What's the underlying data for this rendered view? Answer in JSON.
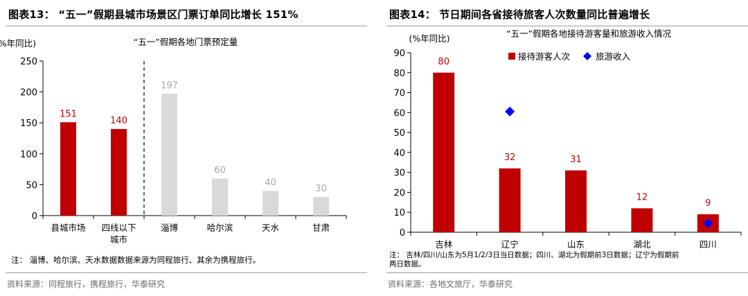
{
  "left": {
    "title": "图表13：  “五一”假期县城市场景区门票订单同比增长 151%",
    "note": "注：  淄博、哈尔滨、天水数据数据来源为同程旅行、其余为携程旅行。",
    "source": "资料来源：同程旅行，携程旅行，华泰研究"
  },
  "right": {
    "title": "图表14：   节日期间各省接待旅客人次数量同比普遍增长",
    "note_line1": "注：  吉林/四川/山东为5月1/2/3日当日数据；四川、湖北为假期前3日数据；辽宁为假期前",
    "note_line2": "两日数据。",
    "source": "资料来源：各地文旅厅，华泰研究"
  },
  "chart_data": [
    {
      "type": "bar",
      "title": "“五一”假期各地门票预定量",
      "ylabel": "(%年同比)",
      "ylim": [
        0,
        250
      ],
      "yticks": [
        0,
        50,
        100,
        150,
        200,
        250
      ],
      "categories": [
        "县城市场",
        "四线以下城市",
        "淄博",
        "哈尔滨",
        "天水",
        "甘肃"
      ],
      "category_lines": [
        [
          "县城市场"
        ],
        [
          "四线以下",
          "城市"
        ],
        [
          "淄博"
        ],
        [
          "哈尔滨"
        ],
        [
          "天水"
        ],
        [
          "甘肃"
        ]
      ],
      "values": [
        151,
        140,
        197,
        60,
        40,
        30
      ],
      "bar_colors": [
        "#c00000",
        "#c00000",
        "#d9d9d9",
        "#d9d9d9",
        "#d9d9d9",
        "#d9d9d9"
      ],
      "label_colors": [
        "#c00000",
        "#c00000",
        "#a6a6a6",
        "#a6a6a6",
        "#a6a6a6",
        "#a6a6a6"
      ],
      "divider_after_index": 1
    },
    {
      "type": "bar",
      "title": "“五一”假期各地接待游客量和旅游收入情况",
      "ylabel": "(%年同比)",
      "ylim": [
        0,
        90
      ],
      "yticks": [
        0,
        10,
        20,
        30,
        40,
        50,
        60,
        70,
        80,
        90
      ],
      "categories": [
        "吉林",
        "辽宁",
        "山东",
        "湖北",
        "四川"
      ],
      "series": [
        {
          "name": "接待游客人次",
          "type": "bar",
          "color": "#c00000",
          "values": [
            80,
            32,
            31,
            12,
            9
          ]
        },
        {
          "name": "旅游收入",
          "type": "scatter",
          "color": "#0000ff",
          "values": [
            null,
            60.5,
            null,
            null,
            4.5
          ]
        }
      ],
      "legend_position": "top-right"
    }
  ]
}
